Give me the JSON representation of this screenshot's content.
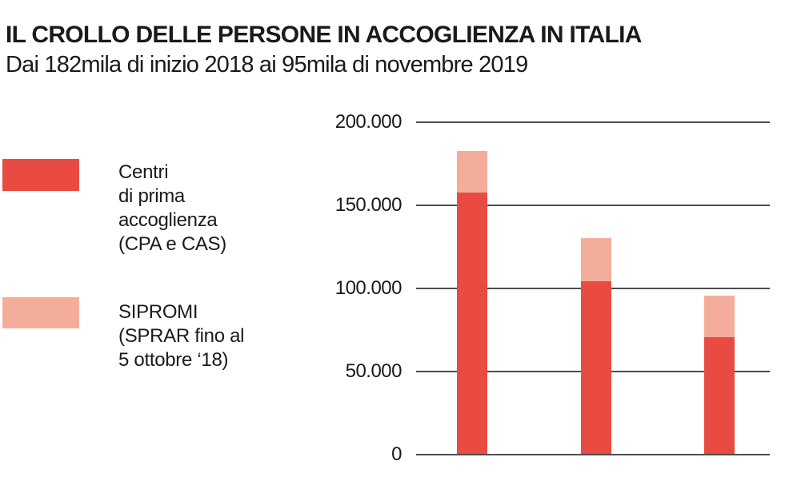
{
  "header": {
    "title": "IL CROLLO DELLE PERSONE IN ACCOGLIENZA IN ITALIA",
    "subtitle": "Dai 182mila di inizio 2018 ai 95mila di novembre 2019"
  },
  "legend": {
    "items": [
      {
        "label": "Centri di prima accoglienza (CPA e CAS)",
        "lines": [
          "Centri",
          "di prima",
          "accoglienza",
          "(CPA e CAS)"
        ],
        "color": "#e94b42"
      },
      {
        "label": "SIPROMI (SPRAR fino al 5 ottobre ‘18)",
        "lines": [
          "SIPROMI",
          "(SPRAR fino al",
          "5 ottobre ‘18)"
        ],
        "color": "#f4ad9b"
      }
    ]
  },
  "colors": {
    "red": "#e94b42",
    "pink": "#f4ad9b",
    "gridline": "#4d4d4d",
    "text": "#1a1a1a",
    "background": "#ffffff"
  },
  "chart_data": {
    "type": "bar",
    "stacked": true,
    "title": "IL CROLLO DELLE PERSONE IN ACCOGLIENZA IN ITALIA",
    "subtitle": "Dai 182mila di inizio 2018 ai 95mila di novembre 2019",
    "categories": [
      "",
      "",
      ""
    ],
    "series": [
      {
        "name": "Centri di prima accoglienza (CPA e CAS)",
        "color": "#e94b42",
        "values": [
          157000,
          104000,
          70000
        ]
      },
      {
        "name": "SIPROMI (SPRAR fino al 5 ottobre ‘18)",
        "color": "#f4ad9b",
        "values": [
          25000,
          26000,
          25000
        ]
      }
    ],
    "stack_totals": [
      182000,
      130000,
      95000
    ],
    "xlabel": "",
    "ylabel": "",
    "ylim": [
      0,
      200000
    ],
    "yticks": [
      0,
      50000,
      100000,
      150000,
      200000
    ],
    "ytick_labels": [
      "0",
      "50.000",
      "100.000",
      "150.000",
      "200.000"
    ],
    "grid": true,
    "legend_position": "left"
  }
}
